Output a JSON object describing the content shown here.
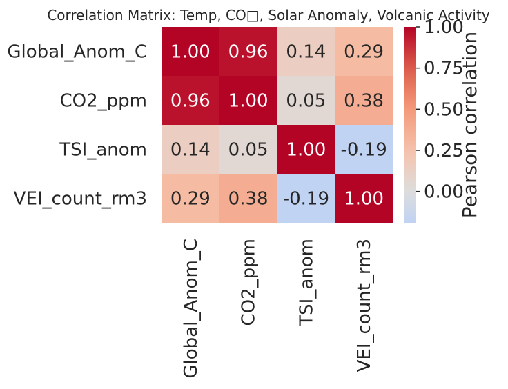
{
  "chart_data": {
    "type": "heatmap",
    "title": "Correlation Matrix: Temp, CO□, Solar Anomaly, Volcanic Activity",
    "rows": [
      "Global_Anom_C",
      "CO2_ppm",
      "TSI_anom",
      "VEI_count_rm3"
    ],
    "columns": [
      "Global_Anom_C",
      "CO2_ppm",
      "TSI_anom",
      "VEI_count_rm3"
    ],
    "values": [
      [
        1.0,
        0.96,
        0.14,
        0.29
      ],
      [
        0.96,
        1.0,
        0.05,
        0.38
      ],
      [
        0.14,
        0.05,
        1.0,
        -0.19
      ],
      [
        0.29,
        0.38,
        -0.19,
        1.0
      ]
    ],
    "value_format": "2dp",
    "colormap": "coolwarm",
    "color_range": [
      -0.19,
      1.0
    ],
    "colorbar": {
      "label": "Pearson correlation",
      "ticks": [
        1.0,
        0.75,
        0.5,
        0.25,
        0.0
      ],
      "tick_labels": [
        "1.00",
        "0.75",
        "0.50",
        "0.25",
        "0.00"
      ]
    }
  }
}
